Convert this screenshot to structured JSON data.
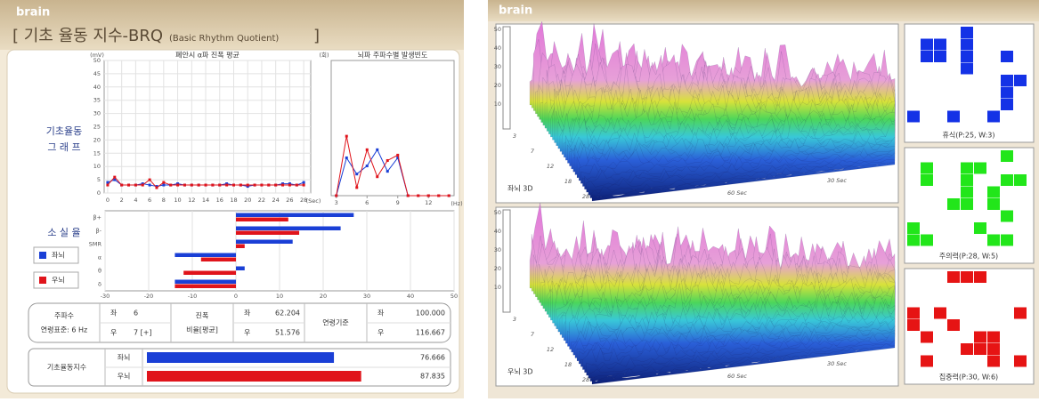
{
  "header": {
    "brand": "brain",
    "title_open": "[ 기초 율동 지수-BRQ",
    "title_sub": "(Basic Rhythm Quotient)",
    "title_close": "]"
  },
  "chart_data": [
    {
      "type": "line",
      "title": "폐안시 α파 진폭 평균",
      "y_label": "(mV)",
      "x_label": "(Sec)",
      "side_label": [
        "기초율동",
        "그 래 프"
      ],
      "x": [
        0,
        1,
        2,
        3,
        4,
        5,
        6,
        7,
        8,
        9,
        10,
        11,
        12,
        13,
        14,
        15,
        16,
        17,
        18,
        19,
        20,
        21,
        22,
        23,
        24,
        25,
        26,
        27,
        28
      ],
      "xlim": [
        -0.5,
        29
      ],
      "xticks": [
        0,
        2,
        4,
        6,
        8,
        10,
        12,
        14,
        16,
        18,
        20,
        22,
        24,
        26,
        28
      ],
      "ylim": [
        0,
        50
      ],
      "yticks": [
        0,
        5,
        10,
        15,
        20,
        25,
        30,
        35,
        40,
        45,
        50
      ],
      "grid": true,
      "series": [
        {
          "color": "#1a3fd6",
          "values": [
            4,
            5,
            3,
            3,
            3,
            3.5,
            3,
            2.5,
            3,
            3,
            3.5,
            3,
            3,
            3,
            3,
            3,
            3,
            3.5,
            3,
            3,
            2.5,
            3,
            3,
            3,
            3,
            3.5,
            3.5,
            3,
            4
          ]
        },
        {
          "color": "#e0141b",
          "values": [
            3,
            6,
            3,
            3,
            3,
            3,
            5,
            2,
            4,
            3,
            3,
            3,
            3,
            3,
            3,
            3,
            3,
            3,
            3,
            3,
            3,
            3,
            3,
            3,
            3,
            3,
            3,
            3,
            3
          ]
        }
      ]
    },
    {
      "type": "line",
      "title": "뇌파 주파수별 발생빈도",
      "y_label": "(회)",
      "x_label": "(Hz)",
      "x": [
        3,
        4,
        5,
        6,
        7,
        8,
        9,
        10,
        11,
        12,
        13,
        14
      ],
      "xlim": [
        2.5,
        14.5
      ],
      "xticks": [
        3,
        6,
        9,
        12
      ],
      "ylim": [
        0,
        50
      ],
      "series": [
        {
          "color": "#1a3fd6",
          "values": [
            0,
            14,
            8,
            11,
            17,
            9,
            14,
            0,
            0,
            0,
            0,
            0
          ]
        },
        {
          "color": "#e0141b",
          "values": [
            0,
            22,
            3,
            17,
            7,
            13,
            15,
            0,
            0,
            0,
            0,
            0
          ]
        }
      ]
    },
    {
      "type": "hbar",
      "title": "소 실 율",
      "categories": [
        "β+",
        "β-",
        "SMR",
        "α",
        "θ",
        "δ"
      ],
      "xlim": [
        -30,
        50
      ],
      "xticks": [
        -30,
        -20,
        -10,
        0,
        10,
        20,
        30,
        40,
        50
      ],
      "grid": true,
      "series": [
        {
          "name": "좌뇌",
          "color": "#1a3fd6",
          "values": [
            27,
            24,
            13,
            -14,
            2,
            -14
          ]
        },
        {
          "name": "우뇌",
          "color": "#e0141b",
          "values": [
            12,
            14.5,
            2,
            -8,
            -12,
            -14
          ]
        }
      ]
    },
    {
      "type": "brq",
      "title": "기초율동지수",
      "categories": [
        "좌뇌",
        "우뇌"
      ],
      "values": [
        76.666,
        87.835
      ],
      "colors": [
        "#1a3fd6",
        "#e0141b"
      ],
      "xlim": [
        0,
        100
      ]
    }
  ],
  "info_table": {
    "frequency": {
      "label": "주파수",
      "norm": "연령표준: 6 Hz",
      "left_label": "좌",
      "left": "6",
      "right_label": "우",
      "right": "7 [+]"
    },
    "amplitude": {
      "label": "진폭",
      "norm": "비율[평균]",
      "left_label": "좌",
      "left": "62.204",
      "right_label": "우",
      "right": "51.576"
    },
    "age": {
      "label": "연령기준",
      "left_label": "좌",
      "left": "100.000",
      "right_label": "우",
      "right": "116.667"
    }
  },
  "right_panel": {
    "brand": "brain",
    "plots": [
      {
        "label": "좌뇌 3D",
        "z_ticks": [
          "50",
          "40",
          "30",
          "20",
          "10"
        ],
        "depth_ticks": [
          "3",
          "7",
          "12",
          "18",
          "28"
        ],
        "time_ticks": [
          "60 Sec",
          "30 Sec"
        ]
      },
      {
        "label": "우뇌 3D",
        "z_ticks": [
          "50",
          "40",
          "30",
          "20",
          "10"
        ],
        "depth_ticks": [
          "3",
          "7",
          "12",
          "18",
          "28"
        ],
        "time_ticks": [
          "60 Sec",
          "30 Sec"
        ]
      }
    ],
    "patterns": [
      {
        "label": "휴식(P:25, W:3)",
        "color": "#1432e6"
      },
      {
        "label": "주의력(P:28, W:5)",
        "color": "#22e61a"
      },
      {
        "label": "집중력(P:30, W:6)",
        "color": "#e61414"
      }
    ]
  }
}
